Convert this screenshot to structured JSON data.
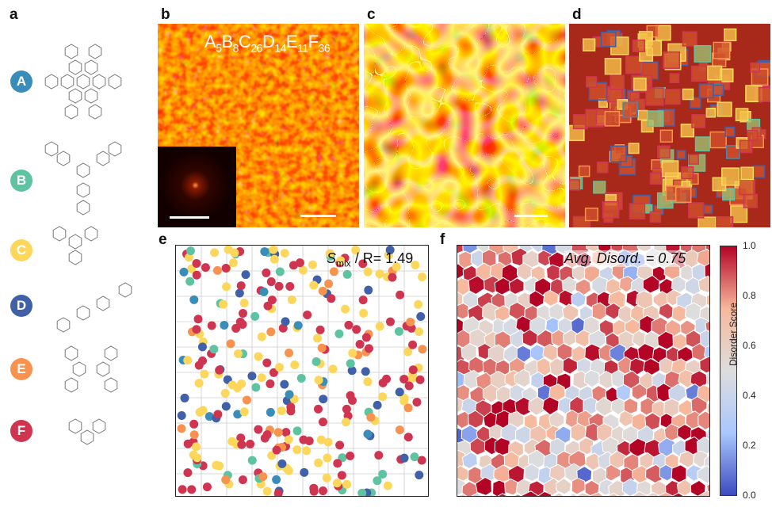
{
  "panel_labels": {
    "a": "a",
    "b": "b",
    "c": "c",
    "d": "d",
    "e": "e",
    "f": "f"
  },
  "molecules": [
    {
      "label": "A",
      "color": "#3a8db8"
    },
    {
      "label": "B",
      "color": "#5ec3a0"
    },
    {
      "label": "C",
      "color": "#fcd75c"
    },
    {
      "label": "D",
      "color": "#4060a8"
    },
    {
      "label": "E",
      "color": "#f8924f"
    },
    {
      "label": "F",
      "color": "#cf3550"
    }
  ],
  "panel_b": {
    "formula": [
      {
        "el": "A",
        "n": "5"
      },
      {
        "el": "B",
        "n": "8"
      },
      {
        "el": "C",
        "n": "26"
      },
      {
        "el": "D",
        "n": "14"
      },
      {
        "el": "E",
        "n": "11"
      },
      {
        "el": "F",
        "n": "36"
      }
    ]
  },
  "panel_e": {
    "s_symbol": "S",
    "s_sub": "mix",
    "ratio_text": " / R= 1.49"
  },
  "panel_f": {
    "avg_text": "Avg. Disord. = 0.75"
  },
  "colorbar": {
    "title": "Disorder Score",
    "ticks": [
      "1.0",
      "0.8",
      "0.6",
      "0.4",
      "0.2",
      "0.0"
    ],
    "colors": [
      "#b40426",
      "#f7b89c",
      "#dddddd",
      "#aac7fd",
      "#3b4cc0"
    ]
  }
}
